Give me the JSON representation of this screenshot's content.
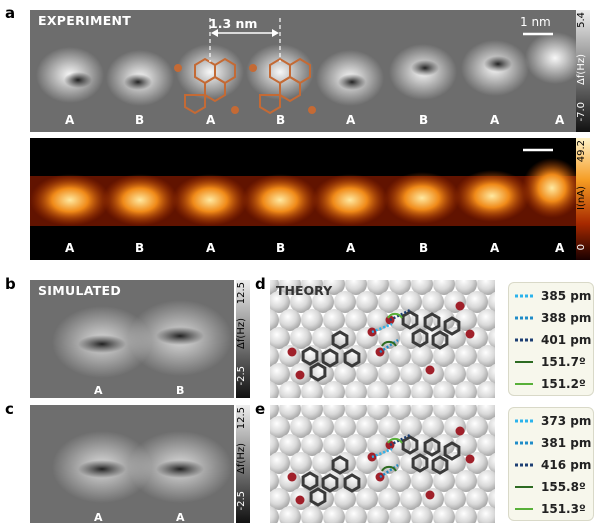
{
  "panel_a": {
    "letter": "a",
    "title": "EXPERIMENT",
    "spacing_label": "1.3 nm",
    "scalebar_label": "1 nm",
    "afm_cbar": {
      "max": "5.4",
      "unit": "Δf(Hz)",
      "min": "-7.0"
    },
    "stm_cbar": {
      "max": "49.2",
      "unit": "I(nA)",
      "min": "0"
    },
    "afm_labels": [
      "A",
      "B",
      "A",
      "B",
      "A",
      "B",
      "A",
      "A"
    ],
    "stm_labels": [
      "A",
      "B",
      "A",
      "B",
      "A",
      "B",
      "A",
      "A"
    ]
  },
  "panel_b": {
    "letter": "b",
    "title": "SIMULATED",
    "cbar": {
      "max": "12.5",
      "unit": "Δf(Hz)",
      "min": "-2.5"
    },
    "labels": [
      "A",
      "B"
    ]
  },
  "panel_c": {
    "letter": "c",
    "cbar": {
      "max": "12.5",
      "unit": "Δf(Hz)",
      "min": "-2.5"
    },
    "labels": [
      "A",
      "A"
    ]
  },
  "panel_d": {
    "letter": "d",
    "title": "THEORY",
    "legend": [
      {
        "value": "385 pm",
        "style": "dotted",
        "color": "#2bb3ec"
      },
      {
        "value": "388 pm",
        "style": "dotted",
        "color": "#1f8cc8"
      },
      {
        "value": "401 pm",
        "style": "dotted",
        "color": "#1d3f73"
      },
      {
        "value": "151.7º",
        "style": "solid",
        "color": "#2d6b22"
      },
      {
        "value": "151.2º",
        "style": "solid",
        "color": "#58b039"
      }
    ]
  },
  "panel_e": {
    "letter": "e",
    "legend": [
      {
        "value": "373 pm",
        "style": "dotted",
        "color": "#2bb3ec"
      },
      {
        "value": "381 pm",
        "style": "dotted",
        "color": "#1f8cc8"
      },
      {
        "value": "416 pm",
        "style": "dotted",
        "color": "#1d3f73"
      },
      {
        "value": "155.8º",
        "style": "solid",
        "color": "#2d6b22"
      },
      {
        "value": "151.3º",
        "style": "solid",
        "color": "#58b039"
      }
    ]
  }
}
